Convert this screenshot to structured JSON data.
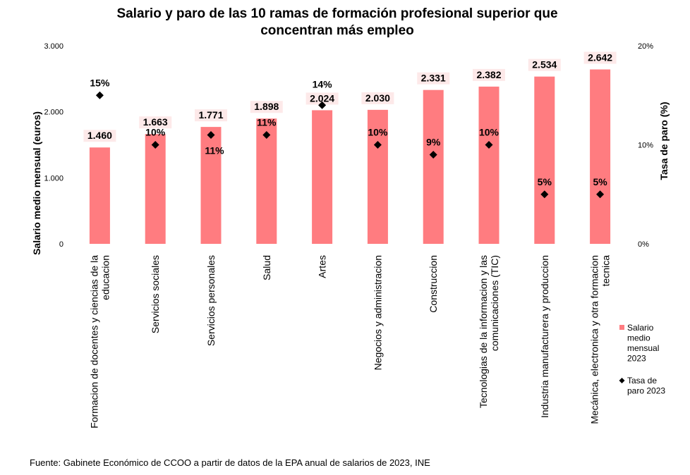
{
  "chart_data": {
    "type": "bar",
    "title_lines": [
      "Salario y paro de las 10 ramas de formación profesional superior que",
      "concentran más empleo"
    ],
    "categories": [
      [
        "Formacion de docentes y ciencias de la",
        "educacion"
      ],
      [
        "Servicios sociales"
      ],
      [
        "Servicios personales"
      ],
      [
        "Salud"
      ],
      [
        "Artes"
      ],
      [
        "Negocios y administracion"
      ],
      [
        "Construccion"
      ],
      [
        "Tecnologias de la informacion y las",
        "comunicaciones (TIC)"
      ],
      [
        "Industria manufacturera y produccion"
      ],
      [
        "Mecánica, electronica y otra formacion",
        "tecnica"
      ]
    ],
    "series": [
      {
        "name": "Salario medio mensual 2023",
        "type": "bar",
        "axis": "left",
        "values": [
          1460,
          1663,
          1771,
          1898,
          2024,
          2030,
          2331,
          2382,
          2534,
          2642
        ],
        "labels": [
          "1.460",
          "1.663",
          "1.771",
          "1.898",
          "2.024",
          "2.030",
          "2.331",
          "2.382",
          "2.534",
          "2.642"
        ]
      },
      {
        "name": "Tasa de paro 2023",
        "type": "scatter",
        "axis": "right",
        "values": [
          15,
          10,
          11,
          11,
          14,
          10,
          9,
          10,
          5,
          5
        ],
        "labels": [
          "15%",
          "10%",
          "11%",
          "11%",
          "14%",
          "10%",
          "9%",
          "10%",
          "5%",
          "5%"
        ]
      }
    ],
    "ylabel_left": "Salario medio mensual (euros)",
    "ylim_left": [
      0,
      3000
    ],
    "yticks_left": [
      "0",
      "1.000",
      "2.000",
      "3.000"
    ],
    "ylabel_right": "Tasa de paro (%)",
    "ylim_right": [
      0,
      20
    ],
    "yticks_right": [
      "0%",
      "10%",
      "20%"
    ],
    "legend_position": "right",
    "legend": [
      {
        "lines": [
          "Salario",
          "medio",
          "mensual",
          "2023"
        ],
        "marker": "square"
      },
      {
        "lines": [
          "Tasa de",
          "paro 2023"
        ],
        "marker": "diamond"
      }
    ],
    "colors": {
      "bar": "#ff7c80",
      "marker": "#000000",
      "label_bg": "#fde9e9"
    },
    "grid": false,
    "source": "Fuente: Gabinete Económico de CCOO a partir de datos de la EPA anual de salarios de 2023, INE"
  }
}
